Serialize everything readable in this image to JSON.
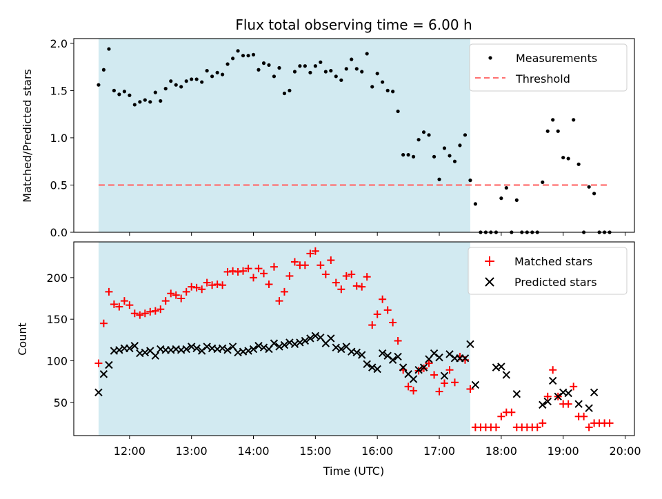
{
  "title": "Flux total observing time = 6.00 h",
  "x_axis": {
    "label": "Time (UTC)",
    "range_hours": [
      11.1,
      20.15
    ],
    "ticks": [
      {
        "value": 12,
        "label": "12:00"
      },
      {
        "value": 13,
        "label": "13:00"
      },
      {
        "value": 14,
        "label": "14:00"
      },
      {
        "value": 15,
        "label": "15:00"
      },
      {
        "value": 16,
        "label": "16:00"
      },
      {
        "value": 17,
        "label": "17:00"
      },
      {
        "value": 18,
        "label": "18:00"
      },
      {
        "value": 19,
        "label": "19:00"
      },
      {
        "value": 20,
        "label": "20:00"
      }
    ]
  },
  "chart_data": [
    {
      "type": "scatter",
      "ylabel": "Matched/Predicted stars",
      "ylim": [
        0,
        2.05
      ],
      "yticks": [
        "0.0",
        "0.5",
        "1.0",
        "1.5",
        "2.0"
      ],
      "shaded_interval_hours": [
        11.5,
        17.5
      ],
      "shaded_color": "#add8e6",
      "legend_position": "upper right",
      "series": [
        {
          "name": "Measurements",
          "marker": "dot",
          "color": "#000000",
          "x": [
            11.5,
            11.583,
            11.667,
            11.75,
            11.833,
            11.917,
            12.0,
            12.083,
            12.167,
            12.25,
            12.333,
            12.417,
            12.5,
            12.583,
            12.667,
            12.75,
            12.833,
            12.917,
            13.0,
            13.083,
            13.167,
            13.25,
            13.333,
            13.417,
            13.5,
            13.583,
            13.667,
            13.75,
            13.833,
            13.917,
            14.0,
            14.083,
            14.167,
            14.25,
            14.333,
            14.417,
            14.5,
            14.583,
            14.667,
            14.75,
            14.833,
            14.917,
            15.0,
            15.083,
            15.167,
            15.25,
            15.333,
            15.417,
            15.5,
            15.583,
            15.667,
            15.75,
            15.833,
            15.917,
            16.0,
            16.083,
            16.167,
            16.25,
            16.333,
            16.417,
            16.5,
            16.583,
            16.667,
            16.75,
            16.833,
            16.917,
            17.0,
            17.083,
            17.167,
            17.25,
            17.333,
            17.417,
            17.5,
            17.583,
            17.667,
            17.75,
            17.833,
            17.917,
            18.0,
            18.083,
            18.167,
            18.25,
            18.333,
            18.417,
            18.5,
            18.583,
            18.667,
            18.75,
            18.833,
            18.917,
            19.0,
            19.083,
            19.167,
            19.25,
            19.333,
            19.417,
            19.5,
            19.583,
            19.667,
            19.75
          ],
          "y": [
            1.56,
            1.72,
            1.94,
            1.5,
            1.46,
            1.49,
            1.45,
            1.35,
            1.38,
            1.4,
            1.38,
            1.48,
            1.39,
            1.52,
            1.6,
            1.56,
            1.54,
            1.6,
            1.62,
            1.62,
            1.59,
            1.71,
            1.65,
            1.69,
            1.67,
            1.78,
            1.84,
            1.92,
            1.87,
            1.87,
            1.88,
            1.72,
            1.79,
            1.77,
            1.65,
            1.74,
            1.47,
            1.5,
            1.7,
            1.76,
            1.76,
            1.69,
            1.76,
            1.8,
            1.7,
            1.71,
            1.65,
            1.61,
            1.73,
            1.83,
            1.73,
            1.7,
            1.89,
            1.54,
            1.68,
            1.59,
            1.5,
            1.49,
            1.28,
            0.82,
            0.82,
            0.8,
            0.98,
            1.06,
            1.03,
            0.8,
            0.56,
            0.89,
            0.81,
            0.75,
            0.92,
            1.03,
            0.55,
            0.3,
            0.0,
            0.0,
            0.0,
            0.0,
            0.36,
            0.47,
            0.0,
            0.34,
            0.0,
            0.0,
            0.0,
            0.0,
            0.53,
            1.07,
            1.19,
            1.07,
            0.79,
            0.78,
            1.19,
            0.72,
            0.0,
            0.48,
            0.41,
            0.0,
            0.0,
            0.0
          ]
        },
        {
          "name": "Threshold",
          "marker": "dashed-line",
          "color": "#ff6f6f",
          "x": [
            11.5,
            19.75
          ],
          "y": [
            0.5,
            0.5
          ]
        }
      ]
    },
    {
      "type": "scatter",
      "ylabel": "Count",
      "ylim": [
        10,
        243
      ],
      "yticks": [
        "50",
        "100",
        "150",
        "200"
      ],
      "shaded_interval_hours": [
        11.5,
        17.5
      ],
      "shaded_color": "#add8e6",
      "legend_position": "upper right",
      "series": [
        {
          "name": "Matched stars",
          "marker": "plus",
          "color": "#ff0000",
          "x": [
            11.5,
            11.583,
            11.667,
            11.75,
            11.833,
            11.917,
            12.0,
            12.083,
            12.167,
            12.25,
            12.333,
            12.417,
            12.5,
            12.583,
            12.667,
            12.75,
            12.833,
            12.917,
            13.0,
            13.083,
            13.167,
            13.25,
            13.333,
            13.417,
            13.5,
            13.583,
            13.667,
            13.75,
            13.833,
            13.917,
            14.0,
            14.083,
            14.167,
            14.25,
            14.333,
            14.417,
            14.5,
            14.583,
            14.667,
            14.75,
            14.833,
            14.917,
            15.0,
            15.083,
            15.167,
            15.25,
            15.333,
            15.417,
            15.5,
            15.583,
            15.667,
            15.75,
            15.833,
            15.917,
            16.0,
            16.083,
            16.167,
            16.25,
            16.333,
            16.417,
            16.5,
            16.583,
            16.667,
            16.75,
            16.833,
            16.917,
            17.0,
            17.083,
            17.167,
            17.25,
            17.333,
            17.417,
            17.5,
            17.583,
            17.667,
            17.75,
            17.833,
            17.917,
            18.0,
            18.083,
            18.167,
            18.25,
            18.333,
            18.417,
            18.5,
            18.583,
            18.667,
            18.75,
            18.833,
            18.917,
            19.0,
            19.083,
            19.167,
            19.25,
            19.333,
            19.417,
            19.5,
            19.583,
            19.667,
            19.75
          ],
          "y": [
            97,
            145,
            183,
            168,
            165,
            172,
            167,
            157,
            155,
            157,
            159,
            160,
            162,
            172,
            181,
            179,
            175,
            183,
            189,
            188,
            186,
            194,
            191,
            192,
            191,
            207,
            208,
            207,
            208,
            211,
            200,
            211,
            205,
            192,
            213,
            172,
            183,
            202,
            219,
            215,
            215,
            229,
            232,
            215,
            204,
            221,
            194,
            186,
            202,
            204,
            190,
            189,
            201,
            143,
            156,
            174,
            161,
            146,
            124,
            89,
            69,
            64,
            88,
            91,
            97,
            83,
            63,
            73,
            89,
            74,
            105,
            101,
            66,
            20,
            20,
            20,
            20,
            20,
            33,
            38,
            38,
            20,
            20,
            20,
            20,
            20,
            25,
            57,
            89,
            57,
            48,
            48,
            69,
            33,
            33,
            20,
            25,
            25,
            25,
            25
          ]
        },
        {
          "name": "Predicted stars",
          "marker": "x",
          "color": "#000000",
          "x": [
            11.5,
            11.583,
            11.667,
            11.75,
            11.833,
            11.917,
            12.0,
            12.083,
            12.167,
            12.25,
            12.333,
            12.417,
            12.5,
            12.583,
            12.667,
            12.75,
            12.833,
            12.917,
            13.0,
            13.083,
            13.167,
            13.25,
            13.333,
            13.417,
            13.5,
            13.583,
            13.667,
            13.75,
            13.833,
            13.917,
            14.0,
            14.083,
            14.167,
            14.25,
            14.333,
            14.417,
            14.5,
            14.583,
            14.667,
            14.75,
            14.833,
            14.917,
            15.0,
            15.083,
            15.167,
            15.25,
            15.333,
            15.417,
            15.5,
            15.583,
            15.667,
            15.75,
            15.833,
            15.917,
            16.0,
            16.083,
            16.167,
            16.25,
            16.333,
            16.417,
            16.5,
            16.583,
            16.667,
            16.75,
            16.833,
            16.917,
            17.0,
            17.083,
            17.167,
            17.25,
            17.333,
            17.417,
            17.5,
            17.583,
            17.917,
            18.0,
            18.083,
            18.25,
            18.667,
            18.75,
            18.833,
            18.917,
            19.0,
            19.083,
            19.25,
            19.417,
            19.5
          ],
          "y": [
            62,
            84,
            95,
            112,
            113,
            115,
            115,
            118,
            109,
            110,
            112,
            106,
            114,
            113,
            113,
            114,
            113,
            114,
            117,
            115,
            112,
            117,
            115,
            114,
            115,
            113,
            117,
            110,
            111,
            112,
            114,
            118,
            116,
            114,
            121,
            117,
            119,
            122,
            120,
            122,
            124,
            127,
            130,
            128,
            121,
            127,
            116,
            114,
            117,
            111,
            110,
            107,
            96,
            92,
            90,
            109,
            106,
            101,
            105,
            92,
            84,
            78,
            89,
            92,
            102,
            109,
            104,
            82,
            108,
            103,
            103,
            103,
            120,
            71,
            92,
            93,
            83,
            60,
            47,
            51,
            76,
            57,
            62,
            61,
            48,
            43,
            62
          ]
        }
      ]
    }
  ]
}
